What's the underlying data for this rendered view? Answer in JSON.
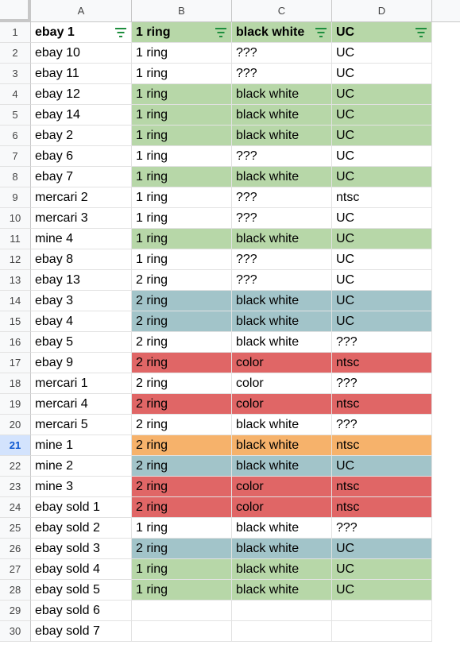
{
  "columns": [
    "A",
    "B",
    "C",
    "D"
  ],
  "header": {
    "a": "ebay 1",
    "b": "1 ring",
    "c": "black white",
    "d": "UC"
  },
  "rows": [
    {
      "n": "2",
      "a": "ebay 10",
      "b": "1 ring",
      "c": "???",
      "d": "UC",
      "fill": "white"
    },
    {
      "n": "3",
      "a": "ebay 11",
      "b": "1 ring",
      "c": "???",
      "d": "UC",
      "fill": "white"
    },
    {
      "n": "4",
      "a": "ebay 12",
      "b": "1 ring",
      "c": "black white",
      "d": "UC",
      "fill": "green"
    },
    {
      "n": "5",
      "a": "ebay 14",
      "b": "1 ring",
      "c": "black white",
      "d": "UC",
      "fill": "green"
    },
    {
      "n": "6",
      "a": "ebay 2",
      "b": "1 ring",
      "c": "black white",
      "d": "UC",
      "fill": "green"
    },
    {
      "n": "7",
      "a": "ebay 6",
      "b": "1 ring",
      "c": "???",
      "d": "UC",
      "fill": "white"
    },
    {
      "n": "8",
      "a": "ebay 7",
      "b": "1 ring",
      "c": "black white",
      "d": "UC",
      "fill": "green"
    },
    {
      "n": "9",
      "a": "mercari 2",
      "b": "1 ring",
      "c": "???",
      "d": "ntsc",
      "fill": "white"
    },
    {
      "n": "10",
      "a": "mercari 3",
      "b": "1 ring",
      "c": "???",
      "d": "UC",
      "fill": "white"
    },
    {
      "n": "11",
      "a": "mine 4",
      "b": "1 ring",
      "c": "black white",
      "d": "UC",
      "fill": "green"
    },
    {
      "n": "12",
      "a": "ebay 8",
      "b": "1 ring",
      "c": "???",
      "d": "UC",
      "fill": "white"
    },
    {
      "n": "13",
      "a": "ebay 13",
      "b": "2 ring",
      "c": "???",
      "d": "UC",
      "fill": "white"
    },
    {
      "n": "14",
      "a": "ebay 3",
      "b": "2 ring",
      "c": "black white",
      "d": "UC",
      "fill": "blue"
    },
    {
      "n": "15",
      "a": "ebay 4",
      "b": "2 ring",
      "c": "black white",
      "d": "UC",
      "fill": "blue"
    },
    {
      "n": "16",
      "a": "ebay 5",
      "b": "2 ring",
      "c": "black white",
      "d": "???",
      "fill": "white"
    },
    {
      "n": "17",
      "a": "ebay 9",
      "b": "2 ring",
      "c": "color",
      "d": "ntsc",
      "fill": "red"
    },
    {
      "n": "18",
      "a": "mercari 1",
      "b": "2 ring",
      "c": "color",
      "d": "???",
      "fill": "white"
    },
    {
      "n": "19",
      "a": "mercari 4",
      "b": "2 ring",
      "c": "color",
      "d": "ntsc",
      "fill": "red"
    },
    {
      "n": "20",
      "a": "mercari 5",
      "b": "2 ring",
      "c": "black white",
      "d": "???",
      "fill": "white"
    },
    {
      "n": "21",
      "a": "mine 1",
      "b": "2 ring",
      "c": "black white",
      "d": "ntsc",
      "fill": "orange"
    },
    {
      "n": "22",
      "a": "mine 2",
      "b": "2 ring",
      "c": "black white",
      "d": "UC",
      "fill": "blue"
    },
    {
      "n": "23",
      "a": "mine 3",
      "b": "2 ring",
      "c": "color",
      "d": "ntsc",
      "fill": "red"
    },
    {
      "n": "24",
      "a": "ebay sold 1",
      "b": "2 ring",
      "c": "color",
      "d": "ntsc",
      "fill": "red"
    },
    {
      "n": "25",
      "a": "ebay sold 2",
      "b": "1 ring",
      "c": "black white",
      "d": "???",
      "fill": "white"
    },
    {
      "n": "26",
      "a": "ebay sold 3",
      "b": "2 ring",
      "c": "black white",
      "d": "UC",
      "fill": "blue"
    },
    {
      "n": "27",
      "a": "ebay sold 4",
      "b": "1 ring",
      "c": "black white",
      "d": "UC",
      "fill": "green"
    },
    {
      "n": "28",
      "a": "ebay sold 5",
      "b": "1 ring",
      "c": "black white",
      "d": "UC",
      "fill": "green"
    },
    {
      "n": "29",
      "a": "ebay sold 6",
      "b": "",
      "c": "",
      "d": "",
      "fill": "white"
    },
    {
      "n": "30",
      "a": "ebay sold 7",
      "b": "",
      "c": "",
      "d": "",
      "fill": "white"
    }
  ],
  "header_row_number": "1",
  "active_row": "21",
  "colors": {
    "green": "#b7d7a8",
    "blue": "#a2c4c9",
    "red": "#e06666",
    "orange": "#f6b26b",
    "filter_icon": "#1e8e3e"
  }
}
